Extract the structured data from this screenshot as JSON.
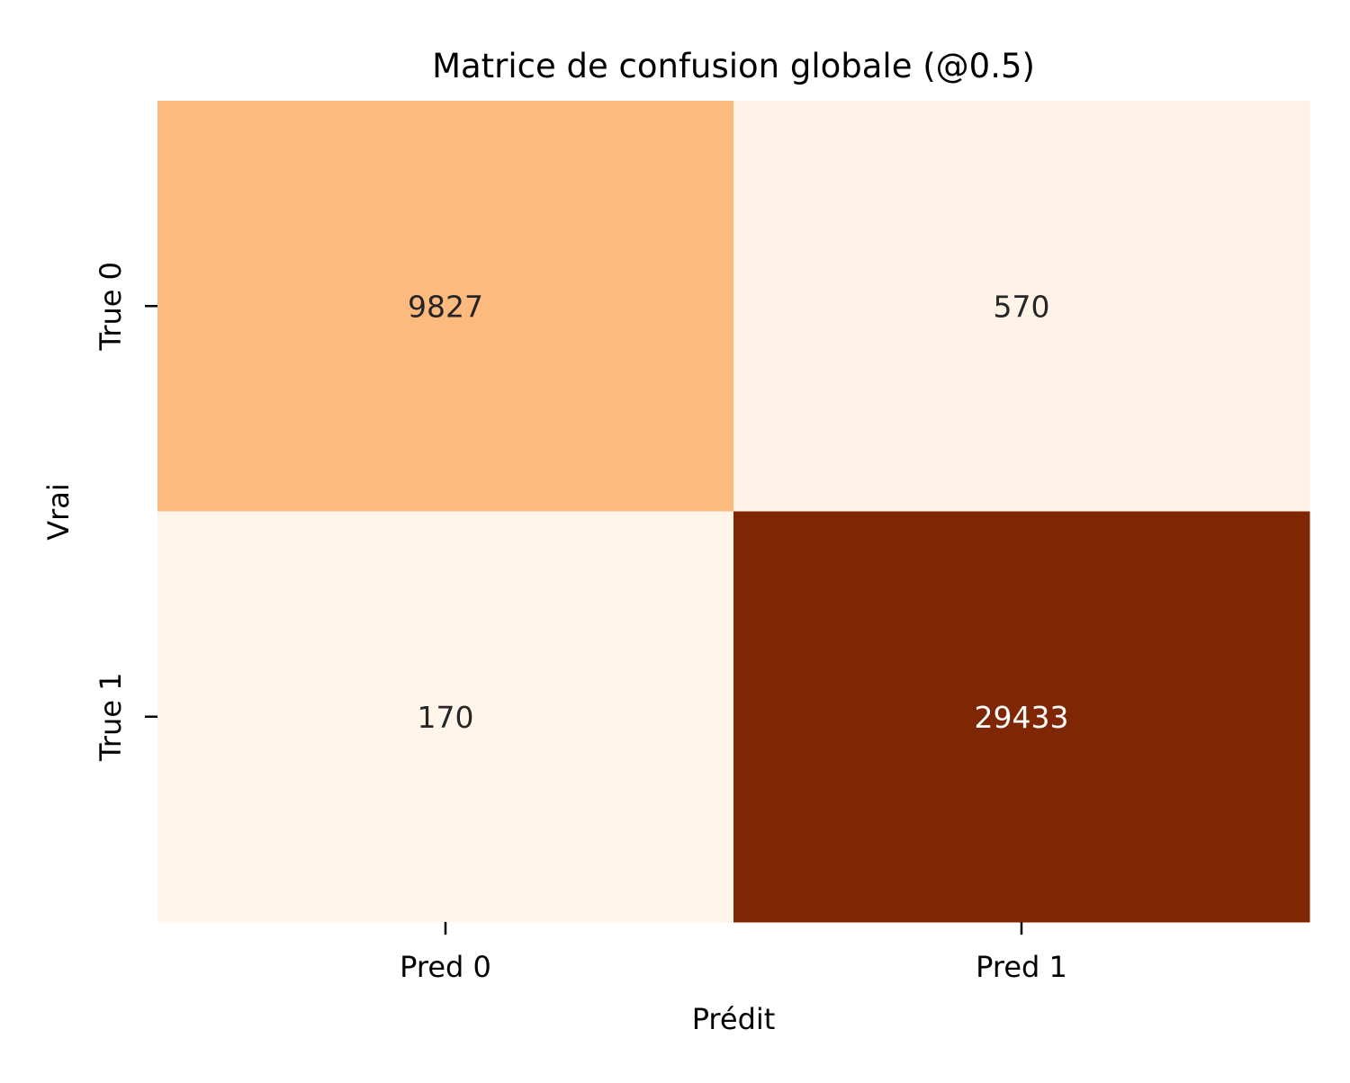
{
  "chart_data": {
    "type": "heatmap",
    "title": "Matrice de confusion globale (@0.5)",
    "xlabel": "Prédit",
    "ylabel": "Vrai",
    "x_categories": [
      "Pred 0",
      "Pred 1"
    ],
    "y_categories": [
      "True 0",
      "True 1"
    ],
    "values": [
      [
        9827,
        570
      ],
      [
        170,
        29433
      ]
    ],
    "colormap": "Oranges",
    "colorbar": false,
    "annotations": true,
    "colors": {
      "low": "#fff5eb",
      "high": "#7f2704",
      "dark_text": "#262626",
      "light_text": "#ffffff"
    }
  }
}
